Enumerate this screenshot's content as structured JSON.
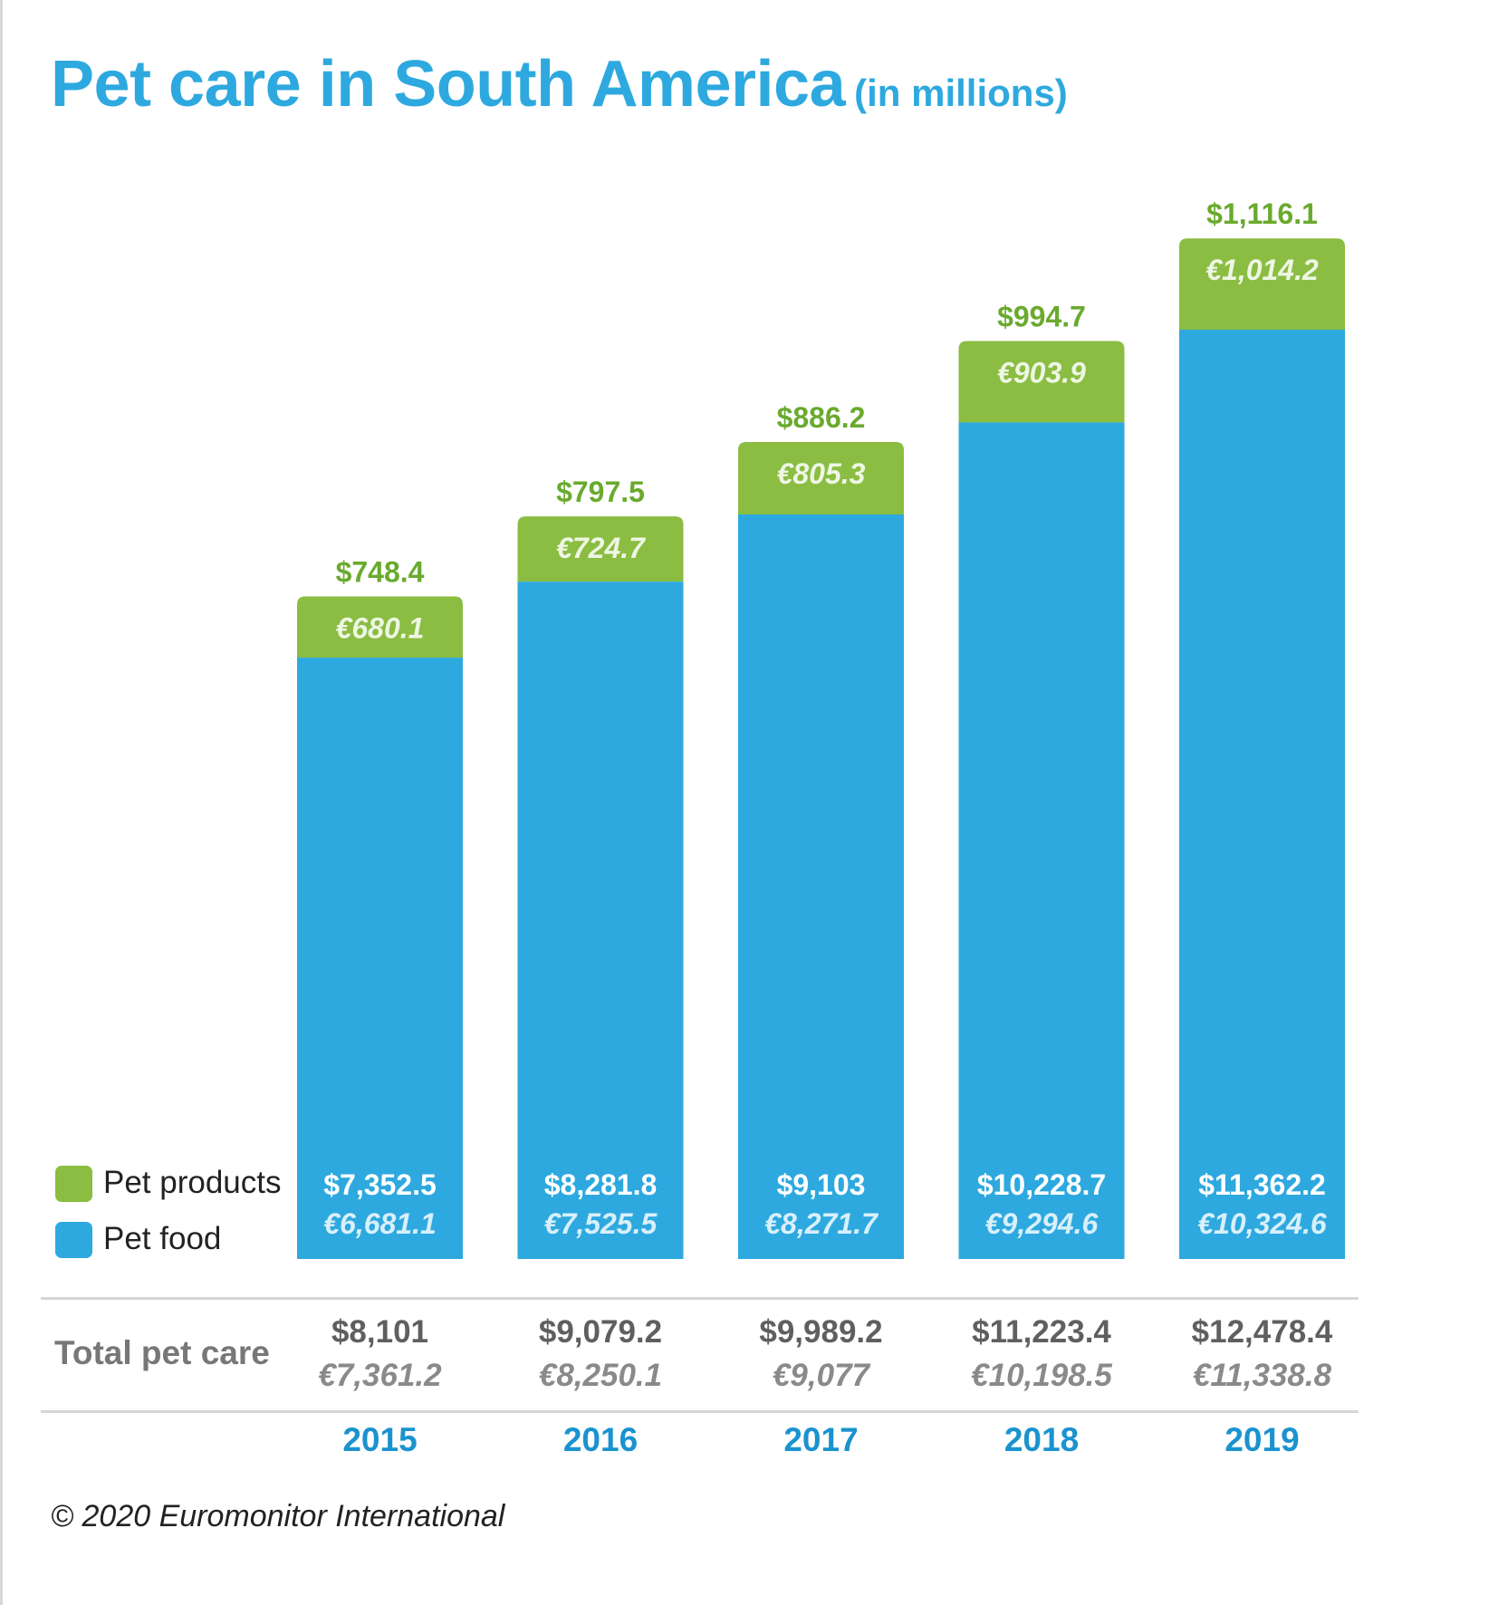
{
  "title": "Pet care in South America",
  "subtitle": "(in millions)",
  "legend": [
    {
      "label": "Pet products",
      "color": "#8abd41"
    },
    {
      "label": "Pet food",
      "color": "#2ea9df"
    }
  ],
  "total_label": "Total pet care",
  "copyright": "© 2020 Euromonitor International",
  "colors": {
    "pet_products": "#8abd41",
    "pet_food": "#2ea9df",
    "products_label": "#6aaa2e",
    "year": "#1a93cf",
    "total_usd": "#5f5f5f",
    "total_eur": "#8a8a8a"
  },
  "chart_data": {
    "type": "bar",
    "stacked": true,
    "title": "Pet care in South America",
    "subtitle": "(in millions)",
    "categories": [
      "2015",
      "2016",
      "2017",
      "2018",
      "2019"
    ],
    "series": [
      {
        "name": "Pet food",
        "values": [
          7352.5,
          8281.8,
          9103,
          10228.7,
          11362.2
        ],
        "usd_labels": [
          "$7,352.5",
          "$8,281.8",
          "$9,103",
          "$10,228.7",
          "$11,362.2"
        ],
        "eur_labels": [
          "€6,681.1",
          "€7,525.5",
          "€8,271.7",
          "€9,294.6",
          "€10,324.6"
        ]
      },
      {
        "name": "Pet products",
        "values": [
          748.4,
          797.5,
          886.2,
          994.7,
          1116.1
        ],
        "usd_labels": [
          "$748.4",
          "$797.5",
          "$886.2",
          "$994.7",
          "$1,116.1"
        ],
        "eur_labels": [
          "€680.1",
          "€724.7",
          "€805.3",
          "€903.9",
          "€1,014.2"
        ]
      }
    ],
    "totals": {
      "values": [
        8101,
        9079.2,
        9989.2,
        11223.4,
        12478.4
      ],
      "usd_labels": [
        "$8,101",
        "$9,079.2",
        "$9,989.2",
        "$11,223.4",
        "$12,478.4"
      ],
      "eur_labels": [
        "€7,361.2",
        "€8,250.1",
        "€9,077",
        "€10,198.5",
        "€11,338.8"
      ]
    },
    "legend_position": "bottom-left",
    "grid": false,
    "axes_visible": false
  }
}
